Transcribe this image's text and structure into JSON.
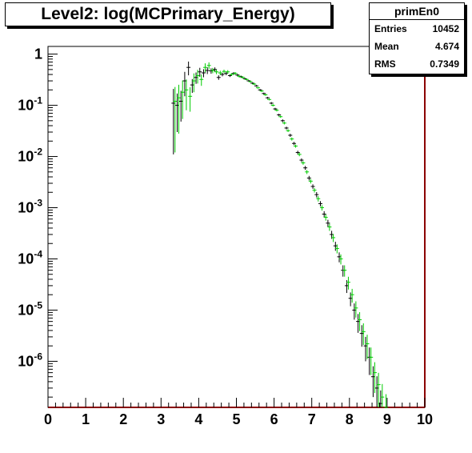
{
  "title": "Level2:  log(MCPrimary_Energy)",
  "stats": {
    "name": "primEn0",
    "rows": [
      {
        "label": "Entries",
        "value": "10452"
      },
      {
        "label": "Mean",
        "value": "4.674"
      },
      {
        "label": "RMS",
        "value": "0.7349"
      }
    ]
  },
  "colors": {
    "series_a": "#000000",
    "series_b": "#00cc00",
    "frame_right": "#8b0000",
    "baseline": "#8b0000"
  },
  "chart_data": {
    "type": "scatter",
    "title": "Level2:  log(MCPrimary_Energy)",
    "xlim": [
      0,
      10
    ],
    "ylim_log10": [
      -6.9,
      0.15
    ],
    "yscale": "log",
    "x_ticks": [
      "0",
      "1",
      "2",
      "3",
      "4",
      "5",
      "6",
      "7",
      "8",
      "9",
      "10"
    ],
    "y_ticks": [
      {
        "base": "1",
        "exp": ""
      },
      {
        "base": "10",
        "exp": "-1"
      },
      {
        "base": "10",
        "exp": "-2"
      },
      {
        "base": "10",
        "exp": "-3"
      },
      {
        "base": "10",
        "exp": "-4"
      },
      {
        "base": "10",
        "exp": "-5"
      },
      {
        "base": "10",
        "exp": "-6"
      }
    ],
    "y_tick_values": [
      1,
      0.1,
      0.01,
      0.001,
      0.0001,
      1e-05,
      1e-06
    ],
    "series": [
      {
        "color": "#000000",
        "x": [
          3.35,
          3.45,
          3.55,
          3.65,
          3.75,
          3.85,
          3.95,
          4.05,
          4.15,
          4.25,
          4.35,
          4.45,
          4.55,
          4.65,
          4.75,
          4.85,
          4.95,
          5.05,
          5.15,
          5.25,
          5.35,
          5.45,
          5.55,
          5.65,
          5.75,
          5.85,
          5.95,
          6.05,
          6.15,
          6.25,
          6.35,
          6.45,
          6.55,
          6.65,
          6.75,
          6.85,
          6.95,
          7.05,
          7.15,
          7.25,
          7.35,
          7.45,
          7.55,
          7.65,
          7.75,
          7.85,
          7.95,
          8.05,
          8.15,
          8.25,
          8.35,
          8.45,
          8.55,
          8.65,
          8.75,
          8.85
        ],
        "y": [
          0.11,
          0.1,
          0.12,
          0.3,
          0.55,
          0.25,
          0.35,
          0.45,
          0.43,
          0.48,
          0.47,
          0.5,
          0.35,
          0.4,
          0.42,
          0.38,
          0.42,
          0.39,
          0.36,
          0.33,
          0.3,
          0.27,
          0.24,
          0.2,
          0.17,
          0.14,
          0.11,
          0.085,
          0.065,
          0.05,
          0.036,
          0.026,
          0.018,
          0.012,
          0.0085,
          0.006,
          0.0038,
          0.0026,
          0.0018,
          0.0012,
          0.00075,
          0.0005,
          0.0003,
          0.00018,
          0.00011,
          6e-05,
          3e-05,
          1.7e-05,
          1e-05,
          6e-06,
          3.5e-06,
          2e-06,
          1.2e-06,
          5e-07,
          3e-07,
          1.5e-07
        ],
        "err_rel": [
          0.9,
          0.7,
          0.6,
          0.5,
          0.3,
          0.3,
          0.25,
          0.2,
          0.18,
          0.15,
          0.12,
          0.1,
          0.1,
          0.08,
          0.08,
          0.06,
          0.06,
          0.05,
          0.05,
          0.04,
          0.04,
          0.04,
          0.04,
          0.04,
          0.04,
          0.04,
          0.05,
          0.05,
          0.05,
          0.06,
          0.06,
          0.07,
          0.07,
          0.08,
          0.08,
          0.09,
          0.1,
          0.1,
          0.12,
          0.12,
          0.14,
          0.16,
          0.18,
          0.2,
          0.22,
          0.25,
          0.28,
          0.3,
          0.35,
          0.4,
          0.45,
          0.5,
          0.55,
          0.6,
          0.7,
          0.8
        ]
      },
      {
        "color": "#00cc00",
        "x": [
          3.35,
          3.45,
          3.55,
          3.65,
          3.75,
          3.85,
          3.95,
          4.05,
          4.15,
          4.25,
          4.35,
          4.45,
          4.55,
          4.65,
          4.75,
          4.85,
          4.95,
          5.05,
          5.15,
          5.25,
          5.35,
          5.45,
          5.55,
          5.65,
          5.75,
          5.85,
          5.95,
          6.05,
          6.15,
          6.25,
          6.35,
          6.45,
          6.55,
          6.65,
          6.75,
          6.85,
          6.95,
          7.05,
          7.15,
          7.25,
          7.35,
          7.45,
          7.55,
          7.65,
          7.75,
          7.85,
          7.95,
          8.05,
          8.15,
          8.25,
          8.35,
          8.45,
          8.55,
          8.65,
          8.75,
          8.85,
          8.95
        ],
        "y": [
          0.12,
          0.14,
          0.18,
          0.2,
          0.15,
          0.3,
          0.38,
          0.32,
          0.55,
          0.6,
          0.48,
          0.45,
          0.43,
          0.46,
          0.45,
          0.4,
          0.42,
          0.37,
          0.35,
          0.32,
          0.29,
          0.26,
          0.22,
          0.19,
          0.16,
          0.13,
          0.1,
          0.08,
          0.06,
          0.045,
          0.032,
          0.022,
          0.016,
          0.011,
          0.0075,
          0.005,
          0.0033,
          0.0022,
          0.0015,
          0.001,
          0.00065,
          0.00042,
          0.00026,
          0.00016,
          0.0001,
          6e-05,
          3.5e-05,
          2e-05,
          1.1e-05,
          6.5e-06,
          3.8e-06,
          2.2e-06,
          1.2e-06,
          6e-07,
          3.5e-07,
          2e-07,
          1.2e-07
        ],
        "err_rel": [
          0.9,
          0.8,
          0.7,
          0.6,
          0.5,
          0.4,
          0.3,
          0.25,
          0.2,
          0.15,
          0.12,
          0.1,
          0.1,
          0.08,
          0.08,
          0.06,
          0.06,
          0.05,
          0.05,
          0.04,
          0.04,
          0.04,
          0.04,
          0.04,
          0.04,
          0.04,
          0.05,
          0.05,
          0.05,
          0.06,
          0.06,
          0.07,
          0.07,
          0.08,
          0.08,
          0.09,
          0.1,
          0.1,
          0.12,
          0.12,
          0.14,
          0.16,
          0.18,
          0.2,
          0.22,
          0.25,
          0.28,
          0.3,
          0.35,
          0.4,
          0.45,
          0.5,
          0.55,
          0.6,
          0.7,
          0.8,
          0.9
        ]
      }
    ]
  }
}
